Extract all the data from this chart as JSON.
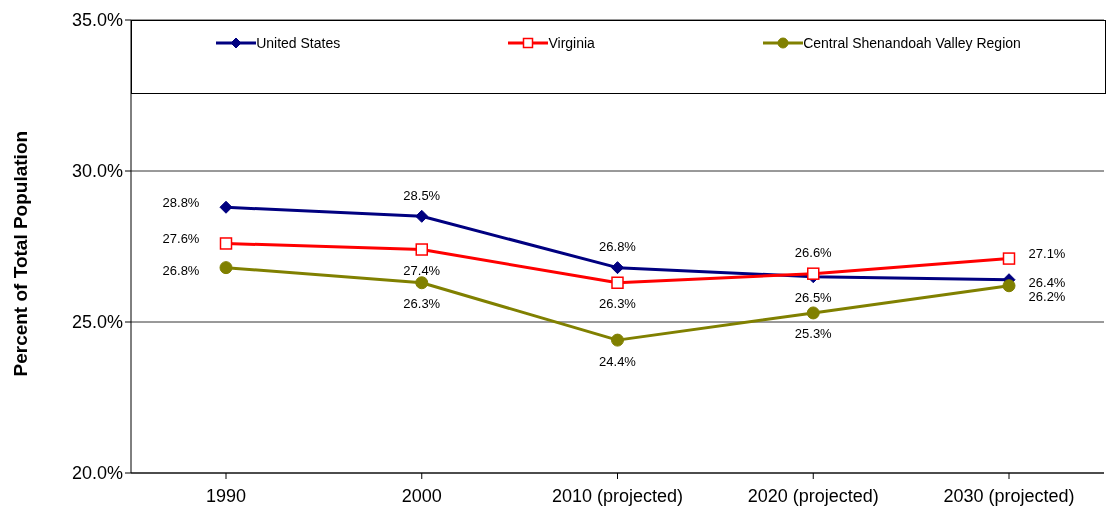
{
  "chart_data": {
    "type": "line",
    "ylabel": "Percent of Total Population",
    "categories": [
      "1990",
      "2000",
      "2010 (projected)",
      "2020 (projected)",
      "2030 (projected)"
    ],
    "series": [
      {
        "name": "United States",
        "color": "#000080",
        "marker": "diamond",
        "values": [
          28.8,
          28.5,
          26.8,
          26.5,
          26.4
        ],
        "value_labels": [
          "28.8%",
          "28.5%",
          "26.8%",
          "26.5%",
          "26.4%"
        ]
      },
      {
        "name": "Virginia",
        "color": "#ff0000",
        "marker": "square",
        "values": [
          27.6,
          27.4,
          26.3,
          26.6,
          27.1
        ],
        "value_labels": [
          "27.6%",
          "27.4%",
          "26.3%",
          "26.6%",
          "27.1%"
        ]
      },
      {
        "name": "Central Shenandoah Valley Region",
        "color": "#808000",
        "marker": "circle",
        "values": [
          26.8,
          26.3,
          24.4,
          25.3,
          26.2
        ],
        "value_labels": [
          "26.8%",
          "26.3%",
          "24.4%",
          "25.3%",
          "26.2%"
        ]
      }
    ],
    "ylim": [
      20,
      35
    ],
    "yticks": [
      {
        "value": 20,
        "label": "20.0%"
      },
      {
        "value": 25,
        "label": "25.0%"
      },
      {
        "value": 30,
        "label": "30.0%"
      },
      {
        "value": 35,
        "label": "35.0%"
      }
    ],
    "grid": "y",
    "legend": "top"
  }
}
